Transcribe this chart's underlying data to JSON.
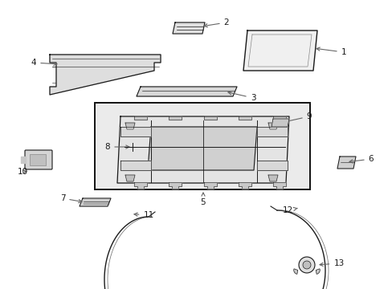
{
  "bg_color": "#ffffff",
  "line_color": "#1a1a1a",
  "label_color": "#1a1a1a",
  "arrow_color": "#666666",
  "box_fill": "#ebebeb",
  "box_border": "#111111",
  "figsize": [
    4.89,
    3.6
  ],
  "dpi": 100
}
